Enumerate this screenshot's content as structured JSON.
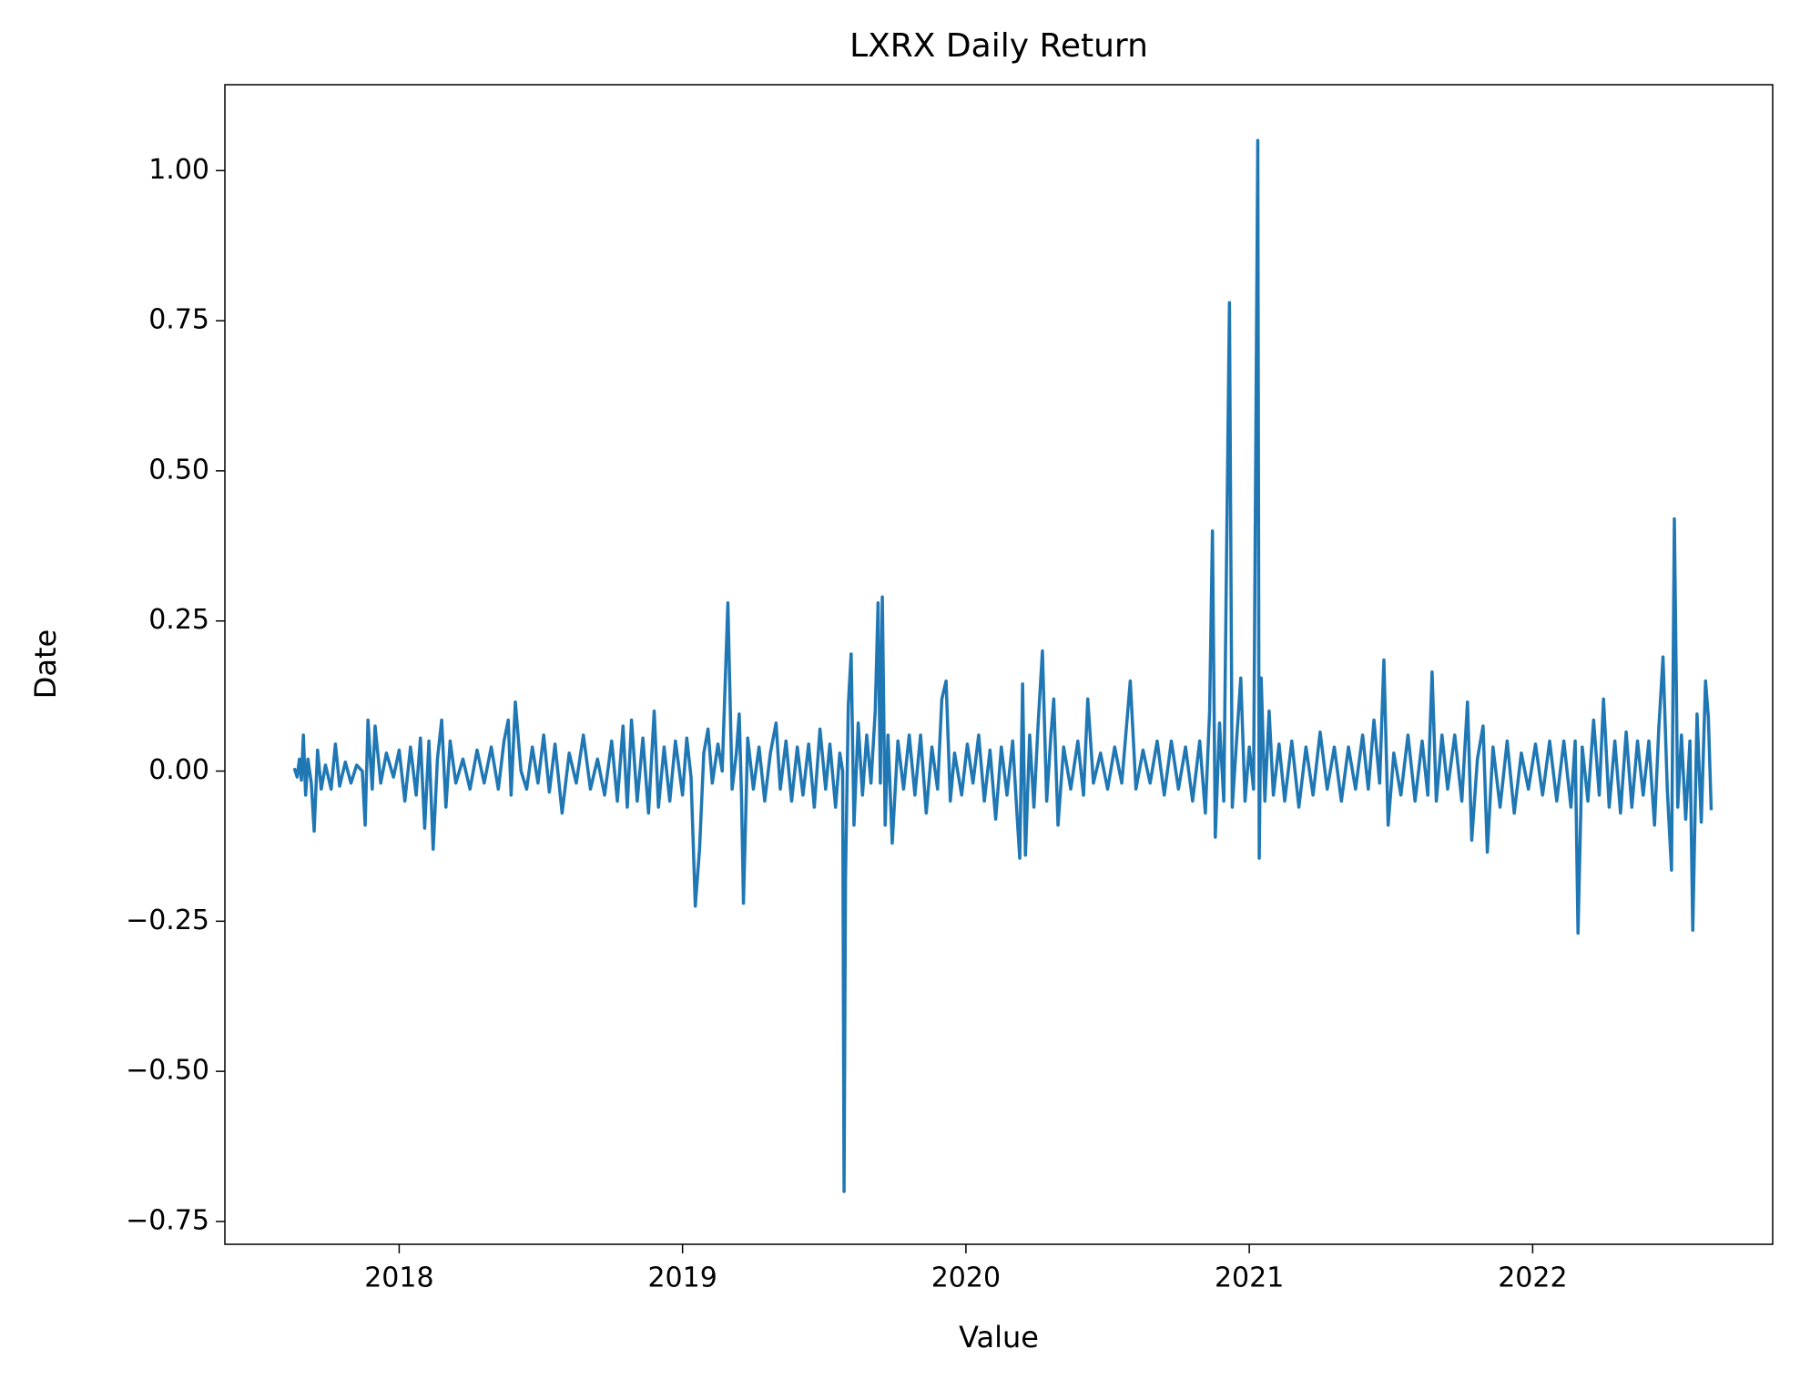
{
  "chart_data": {
    "type": "line",
    "title": "LXRX Daily Return",
    "x_label": "Value",
    "y_label": "Date",
    "color": "#1f77b4",
    "xlim": [
      2017.385,
      2022.847
    ],
    "ylim": [
      -0.788,
      1.143
    ],
    "xticks": [
      2018,
      2019,
      2020,
      2021,
      2022
    ],
    "yticks": [
      {
        "value": -0.75,
        "label": "−0.75"
      },
      {
        "value": -0.5,
        "label": "−0.50"
      },
      {
        "value": -0.25,
        "label": "−0.25"
      },
      {
        "value": 0,
        "label": "0.00"
      },
      0.25,
      {
        "value": 0.5,
        "label": "0.50"
      },
      0.75,
      {
        "value": 1,
        "label": "1.00"
      }
    ],
    "x": [
      2017.63,
      2017.64,
      2017.648,
      2017.655,
      2017.662,
      2017.67,
      2017.678,
      2017.69,
      2017.7,
      2017.712,
      2017.725,
      2017.74,
      2017.76,
      2017.775,
      2017.79,
      2017.81,
      2017.83,
      2017.85,
      2017.87,
      2017.88,
      2017.89,
      2017.905,
      2017.915,
      2017.935,
      2017.955,
      2017.98,
      2018.0,
      2018.02,
      2018.04,
      2018.06,
      2018.075,
      2018.09,
      2018.105,
      2018.12,
      2018.135,
      2018.15,
      2018.165,
      2018.18,
      2018.2,
      2018.225,
      2018.25,
      2018.275,
      2018.3,
      2018.325,
      2018.35,
      2018.37,
      2018.385,
      2018.395,
      2018.41,
      2018.43,
      2018.45,
      2018.47,
      2018.49,
      2018.51,
      2018.53,
      2018.55,
      2018.575,
      2018.6,
      2018.625,
      2018.65,
      2018.675,
      2018.7,
      2018.725,
      2018.75,
      2018.77,
      2018.79,
      2018.805,
      2018.82,
      2018.84,
      2018.86,
      2018.88,
      2018.9,
      2018.915,
      2018.935,
      2018.955,
      2018.975,
      2019.0,
      2019.015,
      2019.03,
      2019.045,
      2019.06,
      2019.075,
      2019.09,
      2019.105,
      2019.125,
      2019.14,
      2019.16,
      2019.175,
      2019.19,
      2019.2,
      2019.208,
      2019.215,
      2019.23,
      2019.25,
      2019.27,
      2019.29,
      2019.31,
      2019.33,
      2019.345,
      2019.365,
      2019.385,
      2019.405,
      2019.425,
      2019.445,
      2019.465,
      2019.485,
      2019.505,
      2019.52,
      2019.54,
      2019.555,
      2019.565,
      2019.57,
      2019.575,
      2019.585,
      2019.595,
      2019.605,
      2019.62,
      2019.635,
      2019.65,
      2019.665,
      2019.68,
      2019.69,
      2019.698,
      2019.705,
      2019.715,
      2019.725,
      2019.74,
      2019.76,
      2019.78,
      2019.8,
      2019.82,
      2019.84,
      2019.86,
      2019.88,
      2019.9,
      2019.915,
      2019.93,
      2019.945,
      2019.96,
      2019.985,
      2020.005,
      2020.025,
      2020.045,
      2020.065,
      2020.085,
      2020.105,
      2020.125,
      2020.145,
      2020.165,
      2020.18,
      2020.19,
      2020.2,
      2020.21,
      2020.225,
      2020.24,
      2020.255,
      2020.27,
      2020.285,
      2020.3,
      2020.31,
      2020.325,
      2020.345,
      2020.37,
      2020.395,
      2020.415,
      2020.43,
      2020.45,
      2020.475,
      2020.5,
      2020.525,
      2020.55,
      2020.58,
      2020.6,
      2020.625,
      2020.65,
      2020.675,
      2020.7,
      2020.725,
      2020.75,
      2020.775,
      2020.8,
      2020.825,
      2020.845,
      2020.86,
      2020.87,
      2020.88,
      2020.895,
      2020.91,
      2020.93,
      2020.94,
      2020.955,
      2020.97,
      2020.985,
      2021.0,
      2021.015,
      2021.03,
      2021.035,
      2021.042,
      2021.055,
      2021.07,
      2021.085,
      2021.105,
      2021.125,
      2021.15,
      2021.175,
      2021.2,
      2021.225,
      2021.25,
      2021.275,
      2021.3,
      2021.325,
      2021.35,
      2021.375,
      2021.4,
      2021.42,
      2021.44,
      2021.46,
      2021.475,
      2021.49,
      2021.51,
      2021.535,
      2021.56,
      2021.585,
      2021.61,
      2021.63,
      2021.645,
      2021.66,
      2021.68,
      2021.7,
      2021.725,
      2021.75,
      2021.77,
      2021.785,
      2021.805,
      2021.825,
      2021.84,
      2021.86,
      2021.885,
      2021.91,
      2021.935,
      2021.96,
      2021.985,
      2022.01,
      2022.035,
      2022.06,
      2022.085,
      2022.11,
      2022.135,
      2022.15,
      2022.16,
      2022.175,
      2022.195,
      2022.215,
      2022.235,
      2022.25,
      2022.27,
      2022.29,
      2022.31,
      2022.33,
      2022.35,
      2022.37,
      2022.39,
      2022.41,
      2022.43,
      2022.445,
      2022.46,
      2022.475,
      2022.49,
      2022.5,
      2022.512,
      2022.525,
      2022.54,
      2022.555,
      2022.565,
      2022.58,
      2022.595,
      2022.61,
      2022.62,
      2022.63
    ],
    "values": [
      0.005,
      -0.01,
      0.02,
      -0.015,
      0.06,
      -0.04,
      0.02,
      -0.02,
      -0.1,
      0.035,
      -0.03,
      0.01,
      -0.03,
      0.045,
      -0.025,
      0.015,
      -0.02,
      0.01,
      0.0,
      -0.09,
      0.085,
      -0.03,
      0.075,
      -0.02,
      0.03,
      -0.01,
      0.035,
      -0.05,
      0.04,
      -0.04,
      0.055,
      -0.095,
      0.05,
      -0.13,
      0.02,
      0.085,
      -0.06,
      0.05,
      -0.02,
      0.02,
      -0.03,
      0.035,
      -0.02,
      0.04,
      -0.03,
      0.05,
      0.085,
      -0.04,
      0.115,
      0.0,
      -0.03,
      0.04,
      -0.02,
      0.06,
      -0.035,
      0.045,
      -0.07,
      0.03,
      -0.02,
      0.06,
      -0.03,
      0.02,
      -0.04,
      0.05,
      -0.05,
      0.075,
      -0.06,
      0.085,
      -0.05,
      0.055,
      -0.07,
      0.1,
      -0.06,
      0.04,
      -0.05,
      0.05,
      -0.04,
      0.055,
      -0.01,
      -0.225,
      -0.13,
      0.03,
      0.07,
      -0.02,
      0.045,
      0.0,
      0.28,
      -0.03,
      0.03,
      0.095,
      -0.04,
      -0.22,
      0.055,
      -0.03,
      0.04,
      -0.05,
      0.03,
      0.08,
      -0.03,
      0.05,
      -0.05,
      0.04,
      -0.04,
      0.045,
      -0.06,
      0.07,
      -0.03,
      0.045,
      -0.06,
      0.03,
      0.0,
      -0.7,
      -0.18,
      0.11,
      0.195,
      -0.09,
      0.08,
      -0.04,
      0.06,
      -0.02,
      0.1,
      0.28,
      -0.02,
      0.29,
      -0.09,
      0.06,
      -0.12,
      0.05,
      -0.03,
      0.06,
      -0.04,
      0.06,
      -0.07,
      0.04,
      -0.03,
      0.12,
      0.15,
      -0.05,
      0.03,
      -0.04,
      0.045,
      -0.02,
      0.06,
      -0.05,
      0.035,
      -0.08,
      0.04,
      -0.04,
      0.05,
      -0.07,
      -0.145,
      0.145,
      -0.14,
      0.06,
      -0.06,
      0.08,
      0.2,
      -0.05,
      0.06,
      0.12,
      -0.09,
      0.04,
      -0.03,
      0.05,
      -0.04,
      0.12,
      -0.02,
      0.03,
      -0.03,
      0.04,
      -0.02,
      0.15,
      -0.03,
      0.035,
      -0.02,
      0.05,
      -0.04,
      0.05,
      -0.03,
      0.04,
      -0.05,
      0.05,
      -0.07,
      0.1,
      0.4,
      -0.11,
      0.08,
      -0.05,
      0.78,
      -0.06,
      0.05,
      0.155,
      -0.05,
      0.04,
      -0.03,
      1.05,
      -0.145,
      0.155,
      -0.05,
      0.1,
      -0.04,
      0.045,
      -0.05,
      0.05,
      -0.06,
      0.04,
      -0.04,
      0.065,
      -0.03,
      0.04,
      -0.05,
      0.04,
      -0.03,
      0.06,
      -0.03,
      0.085,
      -0.02,
      0.185,
      -0.09,
      0.03,
      -0.04,
      0.06,
      -0.05,
      0.05,
      -0.04,
      0.165,
      -0.05,
      0.06,
      -0.03,
      0.06,
      -0.05,
      0.115,
      -0.115,
      0.02,
      0.075,
      -0.135,
      0.04,
      -0.06,
      0.05,
      -0.07,
      0.03,
      -0.03,
      0.045,
      -0.04,
      0.05,
      -0.05,
      0.05,
      -0.06,
      0.05,
      -0.27,
      0.04,
      -0.05,
      0.085,
      -0.04,
      0.12,
      -0.06,
      0.05,
      -0.07,
      0.065,
      -0.06,
      0.05,
      -0.04,
      0.05,
      -0.09,
      0.07,
      0.19,
      -0.03,
      -0.165,
      0.42,
      -0.06,
      0.06,
      -0.08,
      0.05,
      -0.265,
      0.095,
      -0.085,
      0.15,
      0.09,
      -0.065
    ]
  }
}
